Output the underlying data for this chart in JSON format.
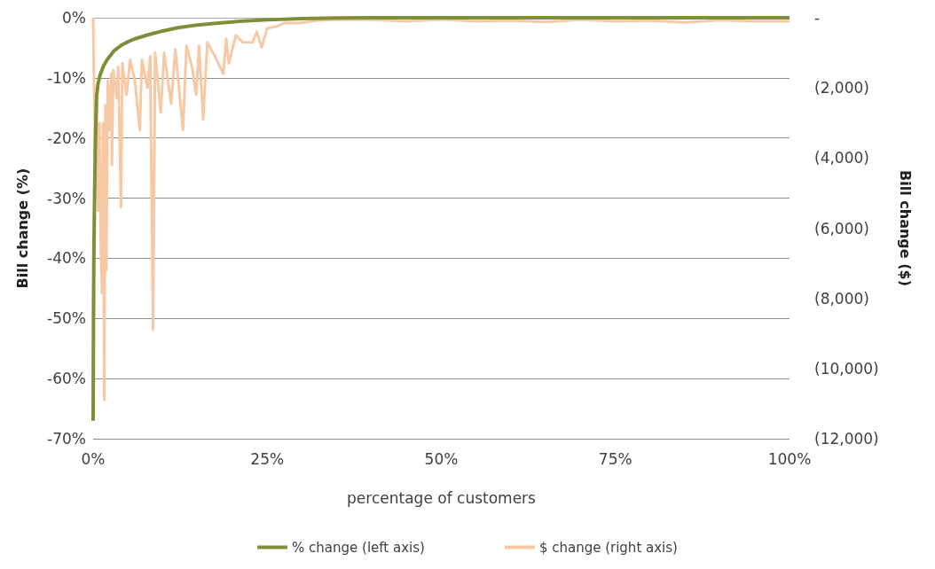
{
  "chart_data": {
    "type": "line",
    "xlabel": "percentage of customers",
    "ylabel": "Bill change (%)",
    "y2label": "Bill change ($)",
    "xlim": [
      0,
      100
    ],
    "xticks": [
      {
        "value": 0,
        "label": "0%"
      },
      {
        "value": 25,
        "label": "25%"
      },
      {
        "value": 50,
        "label": "50%"
      },
      {
        "value": 75,
        "label": "75%"
      },
      {
        "value": 100,
        "label": "100%"
      }
    ],
    "ylim": [
      -70,
      0
    ],
    "yticks": [
      {
        "value": -70,
        "label": "-70%"
      },
      {
        "value": -60,
        "label": "-60%"
      },
      {
        "value": -50,
        "label": "-50%"
      },
      {
        "value": -40,
        "label": "-40%"
      },
      {
        "value": -30,
        "label": "-30%"
      },
      {
        "value": -20,
        "label": "-20%"
      },
      {
        "value": -10,
        "label": "-10%"
      },
      {
        "value": 0,
        "label": "0%"
      }
    ],
    "y2lim": [
      -12000,
      0
    ],
    "y2ticks": [
      {
        "value": -12000,
        "label": "(12,000)"
      },
      {
        "value": -10000,
        "label": "(10,000)"
      },
      {
        "value": -8000,
        "label": "(8,000)"
      },
      {
        "value": -6000,
        "label": "(6,000)"
      },
      {
        "value": -4000,
        "label": "(4,000)"
      },
      {
        "value": -2000,
        "label": "(2,000)"
      },
      {
        "value": 0,
        "label": "-"
      }
    ],
    "grid": "y",
    "legend": "bottom",
    "marker": "none",
    "line_style": "solid",
    "series": [
      {
        "name": "% change (left axis)",
        "color": "#7f8f38",
        "x": [
          0,
          0.05,
          0.1,
          0.2,
          0.3,
          0.4,
          0.5,
          0.7,
          1,
          1.5,
          2,
          3,
          4,
          5,
          6,
          8,
          10,
          12,
          15,
          18,
          21,
          25,
          30,
          35,
          40,
          100
        ],
        "values": [
          -67,
          -50,
          -40,
          -30,
          -22,
          -17,
          -13,
          -11,
          -9.5,
          -8,
          -7,
          -5.5,
          -4.6,
          -4,
          -3.5,
          -2.8,
          -2.2,
          -1.7,
          -1.2,
          -0.9,
          -0.6,
          -0.35,
          -0.15,
          -0.05,
          0,
          0
        ]
      },
      {
        "name": "$ change (right axis)",
        "color": "#f6c9a4",
        "axis": "y2",
        "x": [
          0,
          0.1,
          0.3,
          0.5,
          0.7,
          0.9,
          1.1,
          1.27,
          1.4,
          1.6,
          1.75,
          1.9,
          2.1,
          2.4,
          2.6,
          2.7,
          2.9,
          3.2,
          3.4,
          3.6,
          4,
          4.2,
          4.8,
          5.3,
          6,
          6.7,
          7,
          7.8,
          8.2,
          8.6,
          8.9,
          9.7,
          10.2,
          11.2,
          11.8,
          12.9,
          13.4,
          14.2,
          14.8,
          15.2,
          15.8,
          16.4,
          17.5,
          18.7,
          19.1,
          19.5,
          20.5,
          21.5,
          22.9,
          23.5,
          24.2,
          25,
          26.3,
          27.5,
          29.7,
          32,
          35,
          40,
          45,
          50,
          55,
          60,
          65,
          70,
          75,
          80,
          85,
          90,
          95,
          100
        ],
        "values": [
          0,
          -1500,
          -4000,
          -2500,
          -5500,
          -3000,
          -6500,
          -7850,
          -3000,
          -10900,
          -2500,
          -7200,
          -1800,
          -3200,
          -1600,
          -4200,
          -1500,
          -2000,
          -2300,
          -1400,
          -5400,
          -1300,
          -2200,
          -1200,
          -1800,
          -3200,
          -1200,
          -2000,
          -1100,
          -8900,
          -1000,
          -2700,
          -1000,
          -2450,
          -900,
          -3200,
          -800,
          -1400,
          -2200,
          -800,
          -2900,
          -700,
          -1100,
          -1600,
          -600,
          -1300,
          -500,
          -700,
          -700,
          -400,
          -850,
          -300,
          -250,
          -150,
          -150,
          -80,
          -50,
          -60,
          -100,
          -50,
          -100,
          -80,
          -120,
          -60,
          -100,
          -80,
          -130,
          -70,
          -100,
          -100
        ]
      }
    ]
  }
}
